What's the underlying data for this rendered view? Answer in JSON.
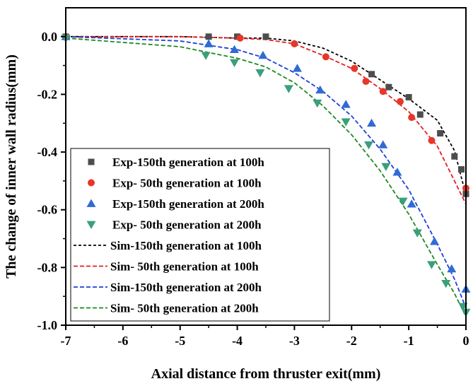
{
  "chart_data": {
    "type": "scatter",
    "title": "",
    "xlabel": "Axial distance from thruster exit(mm)",
    "ylabel": "The change of inner wall radius(mm)",
    "xlim": [
      -7,
      0
    ],
    "ylim": [
      -1.0,
      0.1
    ],
    "x_ticks": [
      "-7",
      "-6",
      "-5",
      "-4",
      "-3",
      "-2",
      "-1",
      "0"
    ],
    "y_ticks": [
      "0.0",
      "-0.2",
      "-0.4",
      "-0.6",
      "-0.8",
      "-1.0"
    ],
    "grid": false,
    "legend_position": "bottom-left",
    "series": [
      {
        "name": "Exp-150th generation at 100h",
        "kind": "markers",
        "marker": "square",
        "color": "#4d4d4d",
        "x": [
          -7.0,
          -4.5,
          -4.0,
          -3.5,
          -1.65,
          -1.35,
          -1.0,
          -0.8,
          -0.45,
          -0.2,
          -0.08,
          0.0
        ],
        "y": [
          0.0,
          0.0,
          0.0,
          0.0,
          -0.13,
          -0.175,
          -0.21,
          -0.27,
          -0.335,
          -0.415,
          -0.46,
          -0.545
        ]
      },
      {
        "name": "Exp-  50th generation at 100h",
        "kind": "markers",
        "marker": "circle",
        "color": "#e8362a",
        "x": [
          -7.0,
          -3.95,
          -3.0,
          -2.45,
          -1.95,
          -1.75,
          -1.45,
          -1.15,
          -0.95,
          -0.6,
          0.0
        ],
        "y": [
          0.0,
          -0.005,
          -0.025,
          -0.07,
          -0.11,
          -0.155,
          -0.19,
          -0.225,
          -0.28,
          -0.36,
          -0.525
        ]
      },
      {
        "name": "Exp-150th generation at 200h",
        "kind": "markers",
        "marker": "triangle-up",
        "color": "#2f6bd6",
        "x": [
          -7.0,
          -4.5,
          -4.05,
          -3.55,
          -2.95,
          -2.55,
          -2.1,
          -1.65,
          -1.45,
          -1.2,
          -0.95,
          -0.55,
          -0.25,
          0.0
        ],
        "y": [
          0.0,
          -0.025,
          -0.045,
          -0.065,
          -0.11,
          -0.185,
          -0.235,
          -0.3,
          -0.375,
          -0.47,
          -0.58,
          -0.71,
          -0.805,
          -0.875
        ]
      },
      {
        "name": "Exp-  50th generation at 200h",
        "kind": "markers",
        "marker": "triangle-down",
        "color": "#3a9f7b",
        "x": [
          -7.0,
          -4.55,
          -4.05,
          -3.6,
          -3.1,
          -2.6,
          -2.1,
          -1.7,
          -1.4,
          -1.1,
          -0.85,
          -0.6,
          -0.35,
          -0.05,
          0.0
        ],
        "y": [
          -0.005,
          -0.065,
          -0.09,
          -0.125,
          -0.18,
          -0.23,
          -0.295,
          -0.375,
          -0.45,
          -0.57,
          -0.68,
          -0.79,
          -0.855,
          -0.935,
          -0.955
        ]
      },
      {
        "name": "Sim-150th generation at 100h",
        "kind": "line",
        "dash": "4,3",
        "color": "#000000",
        "x": [
          -7.0,
          -5.0,
          -4.0,
          -3.5,
          -3.0,
          -2.5,
          -2.0,
          -1.5,
          -1.0,
          -0.5,
          -0.2,
          0.0
        ],
        "y": [
          0.0,
          0.0,
          -0.005,
          -0.005,
          -0.015,
          -0.04,
          -0.085,
          -0.15,
          -0.215,
          -0.29,
          -0.395,
          -0.55
        ]
      },
      {
        "name": "Sim-  50th generation at 100h",
        "kind": "line",
        "dash": "6,3",
        "color": "#e02020",
        "x": [
          -7.0,
          -5.0,
          -4.0,
          -3.5,
          -3.0,
          -2.5,
          -2.0,
          -1.5,
          -1.0,
          -0.5,
          -0.2,
          0.0
        ],
        "y": [
          0.0,
          0.0,
          -0.005,
          -0.01,
          -0.025,
          -0.065,
          -0.11,
          -0.18,
          -0.26,
          -0.38,
          -0.5,
          -0.58
        ]
      },
      {
        "name": "Sim-150th generation at 200h",
        "kind": "line",
        "dash": "6,3",
        "color": "#1f3fd6",
        "x": [
          -7.0,
          -5.0,
          -4.5,
          -4.0,
          -3.5,
          -3.0,
          -2.5,
          -2.0,
          -1.5,
          -1.0,
          -0.5,
          -0.2,
          0.0
        ],
        "y": [
          0.0,
          -0.015,
          -0.03,
          -0.045,
          -0.075,
          -0.125,
          -0.19,
          -0.275,
          -0.39,
          -0.53,
          -0.72,
          -0.84,
          -0.94
        ]
      },
      {
        "name": "Sim-  50th generation at 200h",
        "kind": "line",
        "dash": "6,3",
        "color": "#1e8a1e",
        "x": [
          -7.0,
          -5.0,
          -4.5,
          -4.0,
          -3.5,
          -3.0,
          -2.5,
          -2.0,
          -1.5,
          -1.0,
          -0.5,
          -0.2,
          0.0
        ],
        "y": [
          -0.005,
          -0.035,
          -0.055,
          -0.075,
          -0.105,
          -0.16,
          -0.24,
          -0.34,
          -0.465,
          -0.615,
          -0.79,
          -0.89,
          -0.97
        ]
      }
    ]
  }
}
